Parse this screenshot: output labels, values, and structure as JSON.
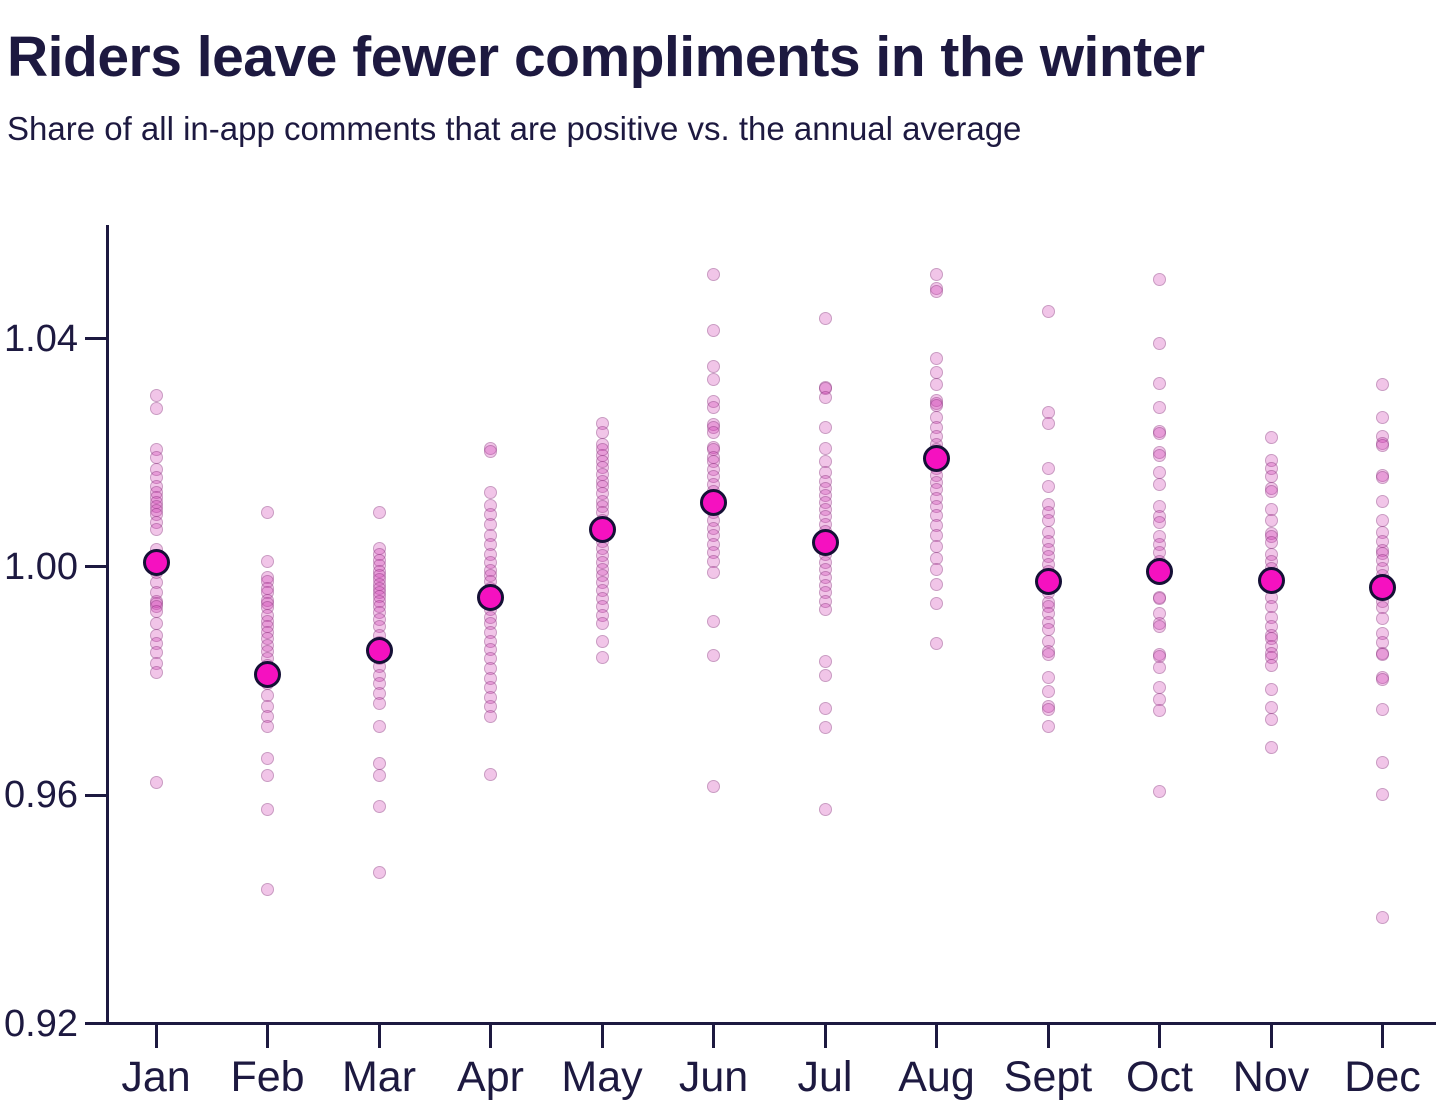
{
  "header": {
    "title": "Riders leave fewer compliments in the winter",
    "subtitle": "Share of all in-app comments that are positive vs. the annual average"
  },
  "colors": {
    "text": "#1d1940",
    "axis": "#1d1940",
    "point_fill": "#cf3fb4",
    "point_opacity": 0.3,
    "point_edge": "#501a50",
    "point_edge_opacity": 0.25,
    "mean_fill": "#f511c0",
    "mean_border": "#151036"
  },
  "chart_data": {
    "type": "scatter",
    "variant": "strip-plot-with-means",
    "title": "Riders leave fewer compliments in the winter",
    "subtitle": "Share of all in-app comments that are positive vs. the annual average",
    "xlabel": "",
    "ylabel": "",
    "grid": false,
    "legend": false,
    "ylim": [
      0.92,
      1.06
    ],
    "y_ticks": [
      {
        "label": "1.04",
        "value": 1.04
      },
      {
        "label": "1.00",
        "value": 1.0
      },
      {
        "label": "0.96",
        "value": 0.96
      },
      {
        "label": "0.92",
        "value": 0.92
      }
    ],
    "categories": [
      "Jan",
      "Feb",
      "Mar",
      "Apr",
      "May",
      "Jun",
      "Jul",
      "Aug",
      "Sept",
      "Oct",
      "Nov",
      "Dec"
    ],
    "monthly_means": [
      1.0007,
      0.9811,
      0.9854,
      0.9946,
      1.0065,
      1.0113,
      1.0043,
      1.019,
      0.9974,
      0.9992,
      0.9977,
      0.9964
    ],
    "daily_points": [
      [
        1.0301,
        1.0278,
        1.0205,
        1.0191,
        1.017,
        1.0156,
        1.014,
        1.013,
        1.0121,
        1.0112,
        1.0105,
        1.0098,
        1.0091,
        1.0077,
        1.0065,
        1.003,
        1.0007,
        0.999,
        0.9972,
        0.9955,
        0.994,
        0.9935,
        0.993,
        0.9921,
        0.99,
        0.988,
        0.9865,
        0.985,
        0.983,
        0.9815,
        0.9622
      ],
      [
        1.0096,
        1.0009,
        0.9981,
        0.9975,
        0.9962,
        0.9955,
        0.9942,
        0.9935,
        0.9928,
        0.9915,
        0.9905,
        0.9896,
        0.9885,
        0.9875,
        0.9862,
        0.9851,
        0.984,
        0.9828,
        0.9812,
        0.9795,
        0.9775,
        0.9755,
        0.9738,
        0.972,
        0.9665,
        0.9635,
        0.9575,
        0.9435
      ],
      [
        1.0095,
        1.0032,
        1.0022,
        1.0012,
        1.0002,
        0.9992,
        0.9985,
        0.9978,
        0.997,
        0.9962,
        0.9955,
        0.9948,
        0.994,
        0.993,
        0.992,
        0.9908,
        0.9895,
        0.988,
        0.9868,
        0.9855,
        0.984,
        0.9825,
        0.981,
        0.9795,
        0.9778,
        0.976,
        0.972,
        0.9655,
        0.9635,
        0.958,
        0.9465
      ],
      [
        1.0208,
        1.0202,
        1.013,
        1.0108,
        1.0092,
        1.0075,
        1.0055,
        1.004,
        1.0022,
        1.0008,
        0.9994,
        0.9985,
        0.9975,
        0.9962,
        0.995,
        0.9938,
        0.9925,
        0.9912,
        0.99,
        0.9885,
        0.987,
        0.9855,
        0.984,
        0.9822,
        0.9805,
        0.9788,
        0.9772,
        0.9755,
        0.9738,
        0.9636
      ],
      [
        1.0252,
        1.0235,
        1.0215,
        1.0205,
        1.0196,
        1.0185,
        1.0175,
        1.0162,
        1.015,
        1.014,
        1.0128,
        1.0115,
        1.0105,
        1.0095,
        1.0082,
        1.007,
        1.0058,
        1.0045,
        1.0032,
        1.002,
        1.0008,
        0.9996,
        0.9985,
        0.9972,
        0.9958,
        0.9945,
        0.993,
        0.9915,
        0.99,
        0.987,
        0.9842
      ],
      [
        1.0512,
        1.0414,
        1.0351,
        1.0328,
        1.0289,
        1.0279,
        1.0249,
        1.0245,
        1.0235,
        1.021,
        1.0206,
        1.0191,
        1.0184,
        1.017,
        1.0158,
        1.0145,
        1.0132,
        1.012,
        1.0108,
        1.0095,
        1.0082,
        1.0068,
        1.0055,
        1.004,
        1.0025,
        1.001,
        0.999,
        0.9905,
        0.9845,
        0.9615
      ],
      [
        1.0436,
        1.0315,
        1.0312,
        1.0296,
        1.0244,
        1.0208,
        1.0184,
        1.0165,
        1.015,
        1.0138,
        1.0125,
        1.0112,
        1.01,
        1.0088,
        1.0075,
        1.0062,
        1.0048,
        1.0035,
        1.0022,
        1.0008,
        0.9995,
        0.9982,
        0.9968,
        0.9955,
        0.994,
        0.9925,
        0.9835,
        0.981,
        0.9752,
        0.9718,
        0.9575
      ],
      [
        1.0513,
        1.0488,
        1.0482,
        1.0366,
        1.034,
        1.0319,
        1.0292,
        1.0287,
        1.0282,
        1.0261,
        1.0244,
        1.0228,
        1.0215,
        1.0205,
        1.0195,
        1.0185,
        1.0172,
        1.016,
        1.0148,
        1.0135,
        1.012,
        1.0105,
        1.009,
        1.0072,
        1.0055,
        1.0035,
        1.0015,
        0.9995,
        0.997,
        0.9935,
        0.9865
      ],
      [
        1.0447,
        1.027,
        1.0252,
        1.0173,
        1.014,
        1.011,
        1.0096,
        1.0082,
        1.006,
        1.0045,
        1.003,
        1.0018,
        1.0005,
        0.9992,
        0.998,
        0.9968,
        0.9955,
        0.9937,
        0.993,
        0.9919,
        0.9902,
        0.989,
        0.9869,
        0.9852,
        0.9846,
        0.9807,
        0.9781,
        0.9755,
        0.975,
        0.972
      ],
      [
        1.0504,
        1.0392,
        1.0322,
        1.028,
        1.0238,
        1.0234,
        1.0201,
        1.0196,
        1.0166,
        1.0144,
        1.0105,
        1.0088,
        1.0077,
        1.0053,
        1.004,
        1.0025,
        1.001,
        0.9995,
        0.998,
        0.9947,
        0.9945,
        0.9919,
        0.99,
        0.9895,
        0.9846,
        0.9843,
        0.9823,
        0.9788,
        0.9767,
        0.9749,
        0.9606
      ],
      [
        1.0226,
        1.0187,
        1.0173,
        1.0158,
        1.0137,
        1.0132,
        1.01,
        1.0082,
        1.0058,
        1.0053,
        1.0042,
        1.0021,
        1.001,
        0.9998,
        0.9985,
        0.997,
        0.9947,
        0.993,
        0.9912,
        0.9895,
        0.988,
        0.9875,
        0.986,
        0.9849,
        0.9842,
        0.9828,
        0.9785,
        0.9753,
        0.9732,
        0.9683
      ],
      [
        1.0319,
        1.0261,
        1.0228,
        1.0216,
        1.0212,
        1.016,
        1.0156,
        1.0114,
        1.0082,
        1.006,
        1.0044,
        1.0028,
        1.0024,
        1.0012,
        0.9998,
        0.9985,
        0.997,
        0.9955,
        0.994,
        0.9928,
        0.991,
        0.9884,
        0.9867,
        0.9849,
        0.9846,
        0.9807,
        0.9803,
        0.9751,
        0.9658,
        0.9601,
        0.9385
      ]
    ]
  }
}
